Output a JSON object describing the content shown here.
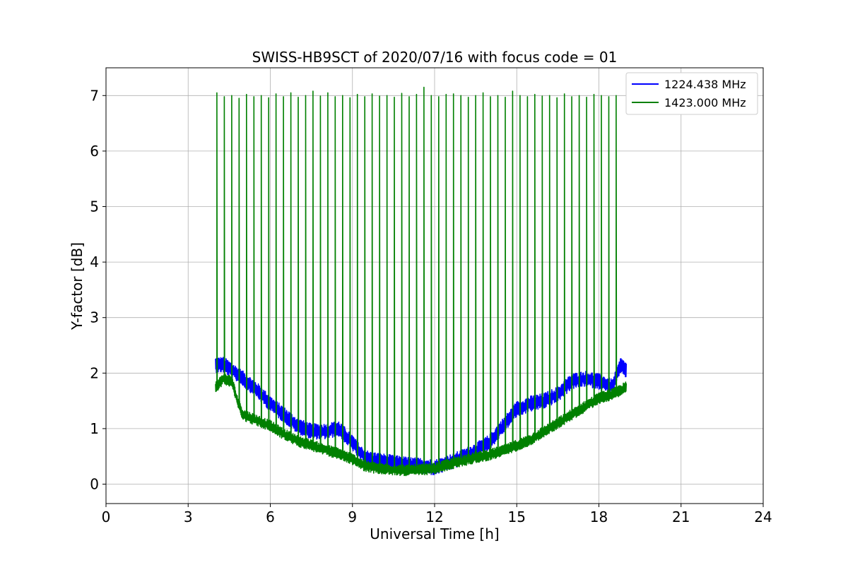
{
  "chart_data": {
    "type": "line",
    "title": "SWISS-HB9SCT of 2020/07/16 with focus code = 01",
    "xlabel": "Universal Time [h]",
    "ylabel": "Y-factor [dB]",
    "xlim": [
      0,
      24
    ],
    "ylim": [
      -0.35,
      7.5
    ],
    "xticks": [
      0,
      3,
      6,
      9,
      12,
      15,
      18,
      21,
      24
    ],
    "yticks": [
      0,
      1,
      2,
      3,
      4,
      5,
      6,
      7
    ],
    "grid": true,
    "legend_position": "top-right",
    "series": [
      {
        "name": "1224.438 MHz",
        "color": "#0000ff",
        "noise_amplitude": 0.14,
        "x": [
          4.0,
          4.3,
          4.6,
          5.0,
          5.5,
          6.0,
          6.5,
          7.0,
          7.5,
          8.0,
          8.5,
          9.0,
          9.3,
          9.6,
          10.0,
          10.5,
          11.0,
          11.5,
          12.0,
          12.5,
          13.0,
          13.5,
          14.0,
          14.5,
          15.0,
          15.5,
          16.0,
          16.5,
          17.0,
          17.5,
          18.0,
          18.5,
          18.8,
          19.0
        ],
        "y": [
          2.15,
          2.15,
          2.05,
          1.9,
          1.7,
          1.45,
          1.25,
          1.05,
          0.95,
          0.95,
          1.0,
          0.75,
          0.55,
          0.45,
          0.42,
          0.38,
          0.35,
          0.33,
          0.3,
          0.38,
          0.48,
          0.6,
          0.75,
          1.05,
          1.35,
          1.45,
          1.5,
          1.62,
          1.85,
          1.9,
          1.85,
          1.75,
          2.15,
          2.05
        ]
      },
      {
        "name": "1423.000 MHz",
        "color": "#008000",
        "noise_amplitude": 0.1,
        "x": [
          4.0,
          4.3,
          4.6,
          4.8,
          5.0,
          5.5,
          6.0,
          6.5,
          7.0,
          7.5,
          8.0,
          8.5,
          9.0,
          9.5,
          10.0,
          10.5,
          11.0,
          11.5,
          12.0,
          12.5,
          13.0,
          13.5,
          14.0,
          14.5,
          15.0,
          15.5,
          16.0,
          16.5,
          17.0,
          17.5,
          18.0,
          18.5,
          19.0
        ],
        "y": [
          1.75,
          1.9,
          1.85,
          1.5,
          1.25,
          1.15,
          1.05,
          0.9,
          0.78,
          0.7,
          0.62,
          0.55,
          0.45,
          0.32,
          0.28,
          0.26,
          0.25,
          0.26,
          0.28,
          0.35,
          0.42,
          0.48,
          0.53,
          0.6,
          0.7,
          0.8,
          0.95,
          1.1,
          1.25,
          1.4,
          1.55,
          1.62,
          1.75
        ]
      }
    ],
    "calibration_spikes": {
      "series": "1423.000 MHz",
      "first_time": 4.05,
      "interval": 0.27,
      "count": 55,
      "peak_values": [
        7.05,
        6.98,
        7.0,
        6.95,
        7.02,
        6.98,
        7.0,
        6.96,
        7.03,
        6.98,
        7.05,
        6.97,
        7.0,
        7.08,
        6.99,
        7.05,
        6.98,
        7.0,
        6.96,
        7.02,
        6.98,
        7.03,
        6.99,
        7.0,
        6.97,
        7.04,
        6.98,
        7.02,
        7.15,
        7.0,
        6.98,
        7.02,
        7.03,
        7.0,
        6.97,
        7.0,
        7.05,
        6.98,
        7.0,
        6.97,
        7.08,
        7.0,
        6.98,
        7.02,
        6.99,
        7.0,
        6.96,
        7.03,
        6.98,
        7.0,
        6.97,
        7.02,
        7.0,
        6.98,
        7.0
      ]
    }
  }
}
